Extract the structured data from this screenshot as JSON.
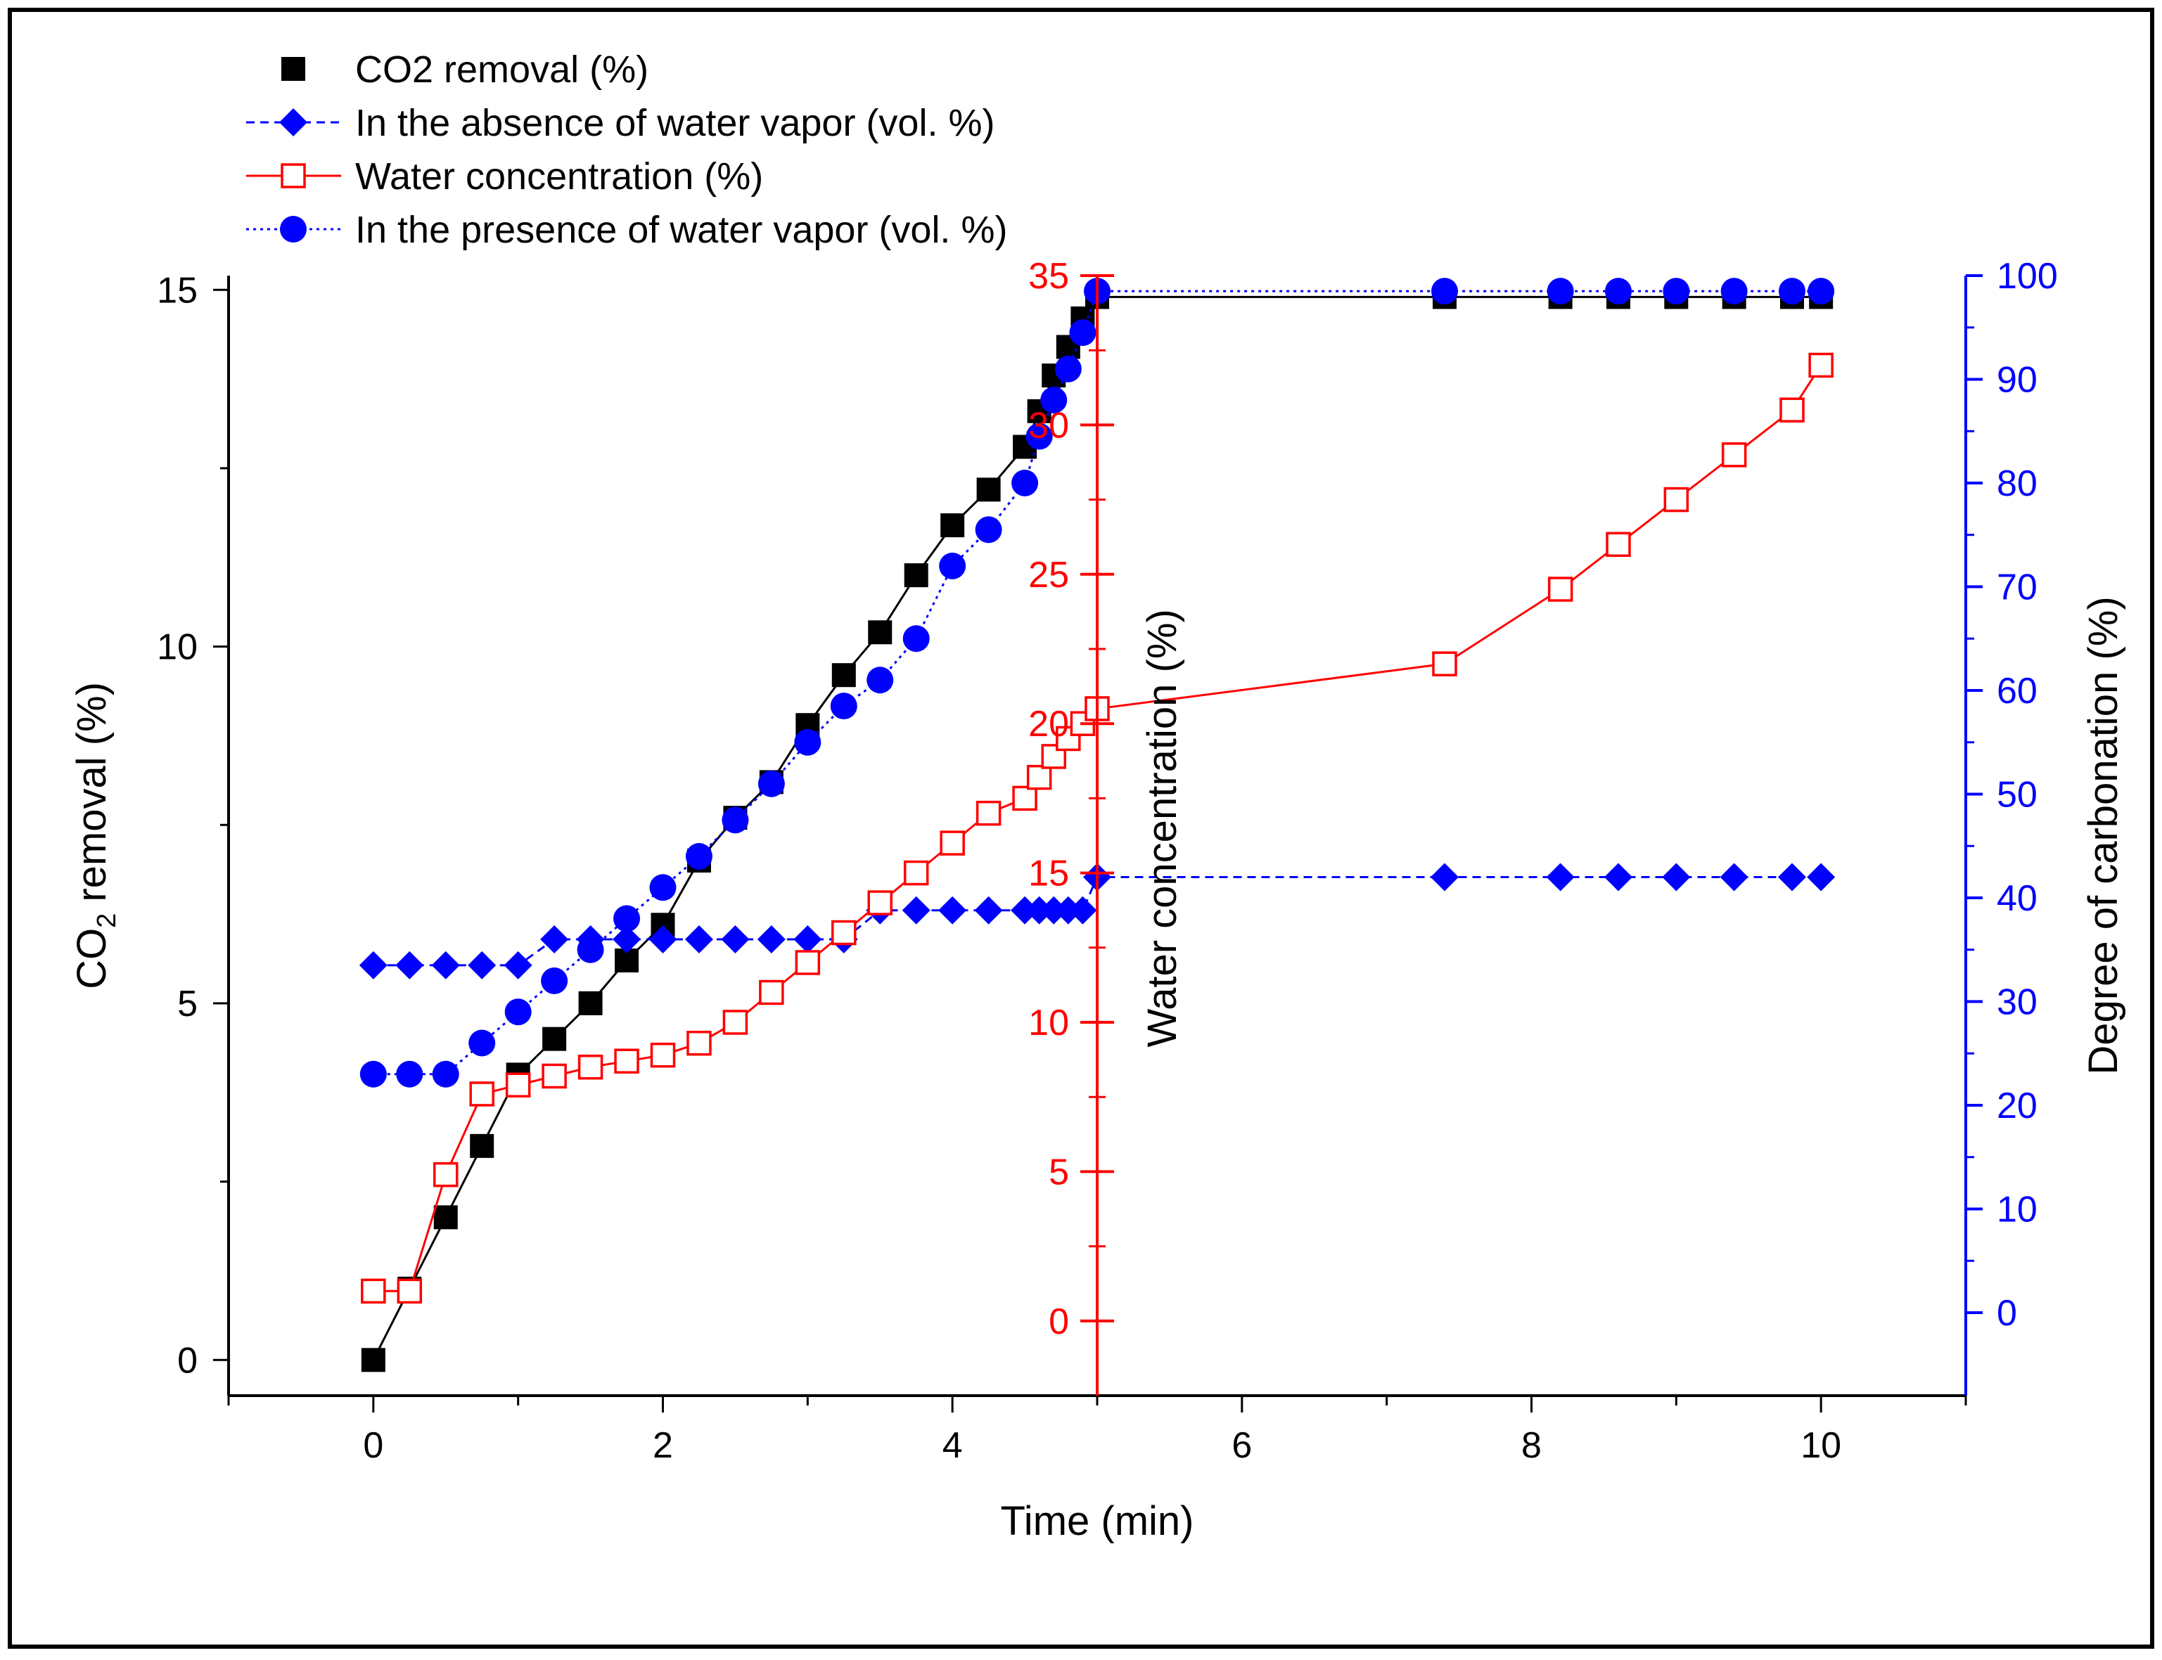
{
  "chart_data": {
    "type": "scatter",
    "title": "",
    "xlabel": "Time (min)",
    "xlim": [
      -1,
      11
    ],
    "xticks": [
      0,
      2,
      4,
      6,
      8,
      10
    ],
    "y_axes": {
      "left": {
        "label_main": "CO",
        "label_sub": "2",
        "label_rest": " removal (%)",
        "lim": [
          -0.5,
          15.2
        ],
        "ticks": [
          0,
          5,
          10,
          15
        ],
        "color": "#000000"
      },
      "middle": {
        "label": "Water concentration (%)",
        "lim": [
          -2.5,
          35
        ],
        "ticks": [
          0,
          5,
          10,
          15,
          20,
          25,
          30,
          35
        ],
        "position_x_data": 5,
        "color": "#ff0000"
      },
      "right": {
        "label": "Degree of carbonation (%)",
        "lim": [
          -8,
          100
        ],
        "ticks": [
          0,
          10,
          20,
          30,
          40,
          50,
          60,
          70,
          80,
          90,
          100
        ],
        "color": "#0000ff"
      }
    },
    "legend": {
      "placement": "top-left",
      "entries": [
        "CO2 removal (%)",
        "In the absence of water vapor (vol. %)",
        "Water concentration (%)",
        "In the presence of water vapor (vol. %)"
      ]
    },
    "series": [
      {
        "name": "CO2 removal (%)",
        "axis": "left",
        "marker": "filled-square",
        "color": "#000000",
        "line": "solid",
        "x": [
          0,
          0.25,
          0.5,
          0.75,
          1,
          1.25,
          1.5,
          1.75,
          2,
          2.25,
          2.5,
          2.75,
          3,
          3.25,
          3.5,
          3.75,
          4,
          4.25,
          4.5,
          4.6,
          4.7,
          4.8,
          4.9,
          5,
          7.4,
          8.2,
          8.6,
          9,
          9.4,
          9.8,
          10
        ],
        "y": [
          0,
          1,
          2,
          3,
          4,
          4.5,
          5,
          5.6,
          6.1,
          7.0,
          7.6,
          8.1,
          8.9,
          9.6,
          10.2,
          11.0,
          11.7,
          12.2,
          12.8,
          13.3,
          13.8,
          14.2,
          14.6,
          14.9,
          14.9,
          14.9,
          14.9,
          14.9,
          14.9,
          14.9,
          14.9
        ]
      },
      {
        "name": "In the absence of water vapor (vol. %)",
        "axis": "right",
        "marker": "filled-diamond",
        "color": "#0000ff",
        "line": "dashed",
        "x": [
          0,
          0.25,
          0.5,
          0.75,
          1,
          1.25,
          1.5,
          1.75,
          2,
          2.25,
          2.5,
          2.75,
          3,
          3.25,
          3.5,
          3.75,
          4,
          4.25,
          4.5,
          4.6,
          4.7,
          4.8,
          4.9,
          5,
          7.4,
          8.2,
          8.6,
          9,
          9.4,
          9.8,
          10
        ],
        "y": [
          33.5,
          33.5,
          33.5,
          33.5,
          33.5,
          36,
          36,
          36,
          36,
          36,
          36,
          36,
          36,
          36,
          38.8,
          38.8,
          38.8,
          38.8,
          38.8,
          38.8,
          38.8,
          38.8,
          38.8,
          42,
          42,
          42,
          42,
          42,
          42,
          42,
          42
        ]
      },
      {
        "name": "Water concentration (%)",
        "axis": "middle",
        "marker": "open-square",
        "color": "#ff0000",
        "line": "solid",
        "x": [
          0,
          0.25,
          0.5,
          0.75,
          1,
          1.25,
          1.5,
          1.75,
          2,
          2.25,
          2.5,
          2.75,
          3,
          3.25,
          3.5,
          3.75,
          4,
          4.25,
          4.5,
          4.6,
          4.7,
          4.8,
          4.9,
          5,
          7.4,
          8.2,
          8.6,
          9,
          9.4,
          9.8,
          10
        ],
        "y": [
          1,
          1,
          4.9,
          7.6,
          7.9,
          8.2,
          8.5,
          8.7,
          8.9,
          9.3,
          10,
          11,
          12,
          13,
          14,
          15,
          16,
          17,
          17.5,
          18.2,
          18.9,
          19.5,
          20,
          20.5,
          22,
          24.5,
          26,
          27.5,
          29,
          30.5,
          32
        ]
      },
      {
        "name": "In the presence of water vapor (vol. %)",
        "axis": "right",
        "marker": "filled-circle",
        "color": "#0000ff",
        "line": "dotted",
        "x": [
          0,
          0.25,
          0.5,
          0.75,
          1,
          1.25,
          1.5,
          1.75,
          2,
          2.25,
          2.5,
          2.75,
          3,
          3.25,
          3.5,
          3.75,
          4,
          4.25,
          4.5,
          4.6,
          4.7,
          4.8,
          4.9,
          5,
          7.4,
          8.2,
          8.6,
          9,
          9.4,
          9.8,
          10
        ],
        "y": [
          23,
          23,
          23,
          26,
          29,
          32,
          35,
          38,
          41,
          44,
          47.5,
          51,
          55,
          58.5,
          61,
          65,
          72,
          75.5,
          80,
          84.5,
          88,
          91,
          94.5,
          98.5,
          98.5,
          98.5,
          98.5,
          98.5,
          98.5,
          98.5,
          98.5
        ]
      }
    ]
  }
}
